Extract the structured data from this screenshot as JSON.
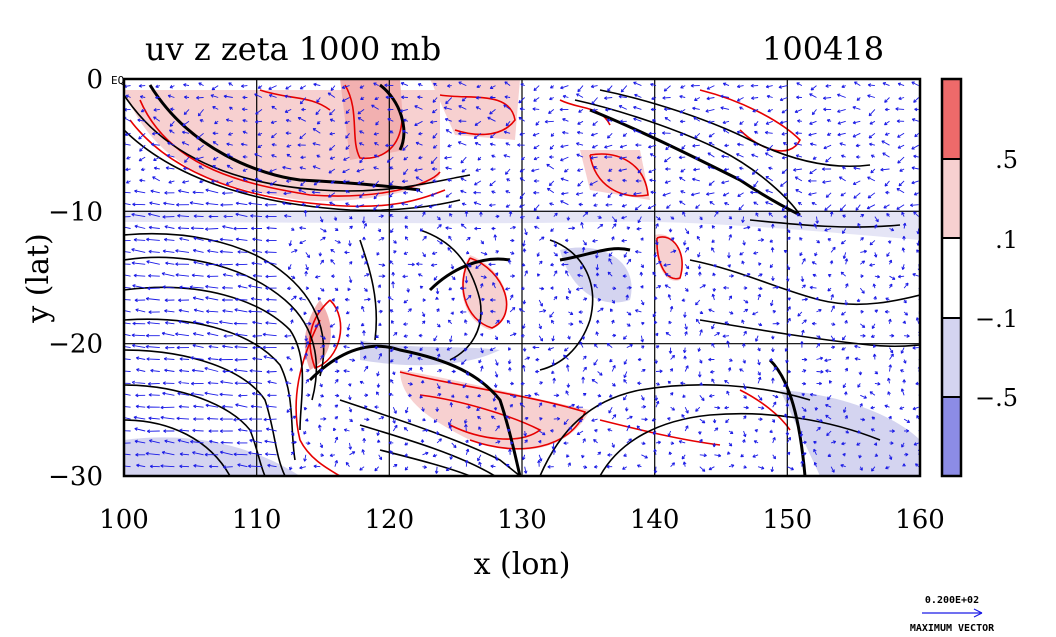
{
  "chart_data": {
    "type": "contour",
    "title": "uv z zeta 1000 mb",
    "date_label": "100418",
    "xlabel": "x (lon)",
    "ylabel": "y (lat)",
    "xlim": [
      100,
      160
    ],
    "ylim": [
      -30,
      0
    ],
    "x_ticks": [
      100,
      110,
      120,
      130,
      140,
      150,
      160
    ],
    "y_ticks": [
      0,
      -10,
      -20,
      -30
    ],
    "y_tick_labels": [
      "0",
      "−10",
      "−20",
      "−30"
    ],
    "corner_label": "EQ",
    "grid": true,
    "series": [
      {
        "name": "uv",
        "kind": "wind vectors",
        "color": "#1a1ae6"
      },
      {
        "name": "z",
        "kind": "geopotential height contours",
        "color": "#000000"
      },
      {
        "name": "zeta",
        "kind": "vorticity shaded contours",
        "color": "#e60000"
      }
    ],
    "colorbar": {
      "labels": [
        ".5",
        ".1",
        "−.1",
        "−.5"
      ],
      "bands": [
        "#ee6a6a",
        "#f7d0d0",
        "#ffffff",
        "#d4d4f0",
        "#8c8ce6"
      ]
    },
    "legend_vector": {
      "magnitude_text": "0.200E+02",
      "label": "MAXIMUM VECTOR",
      "color": "#1a1ae6"
    }
  }
}
